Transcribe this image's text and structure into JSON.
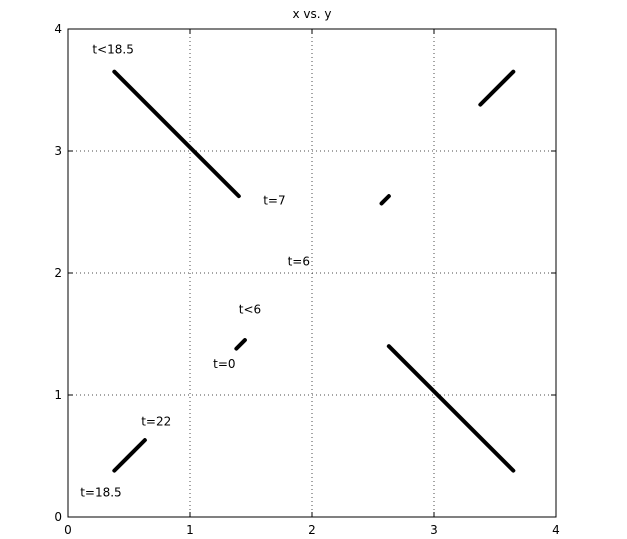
{
  "chart_data": {
    "type": "line",
    "title": "x vs. y",
    "xlabel": "",
    "ylabel": "",
    "xlim": [
      0,
      4
    ],
    "ylim": [
      0,
      4
    ],
    "xticks": [
      "0",
      "1",
      "2",
      "3",
      "4"
    ],
    "yticks": [
      "0",
      "1",
      "2",
      "3",
      "4"
    ],
    "grid": true,
    "series": [
      {
        "x": [
          0.38,
          1.4
        ],
        "y": [
          3.65,
          2.63
        ]
      },
      {
        "x": [
          3.38,
          3.65
        ],
        "y": [
          3.38,
          3.65
        ]
      },
      {
        "x": [
          2.57,
          2.63
        ],
        "y": [
          2.57,
          2.63
        ]
      },
      {
        "x": [
          1.38,
          1.45
        ],
        "y": [
          1.38,
          1.45
        ]
      },
      {
        "x": [
          2.63,
          3.65
        ],
        "y": [
          1.4,
          0.38
        ]
      },
      {
        "x": [
          0.38,
          0.63
        ],
        "y": [
          0.38,
          0.63
        ]
      }
    ],
    "annotations": [
      {
        "text": "t<18.5",
        "x": 0.2,
        "y": 3.8
      },
      {
        "text": "t=7",
        "x": 1.6,
        "y": 2.56
      },
      {
        "text": "t=6",
        "x": 1.8,
        "y": 2.06
      },
      {
        "text": "t<6",
        "x": 1.4,
        "y": 1.67
      },
      {
        "text": "t=0",
        "x": 1.19,
        "y": 1.22
      },
      {
        "text": "t=22",
        "x": 0.6,
        "y": 0.75
      },
      {
        "text": "t=18.5",
        "x": 0.1,
        "y": 0.17
      }
    ]
  }
}
